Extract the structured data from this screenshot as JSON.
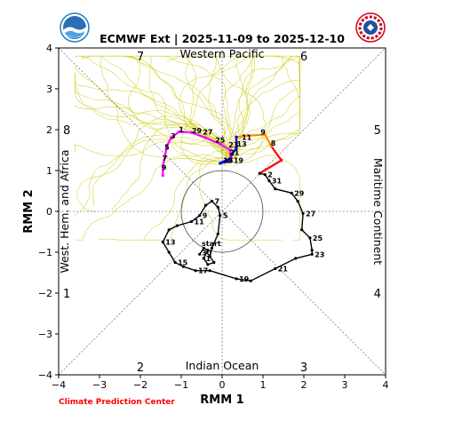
{
  "chart_data": {
    "type": "line",
    "title": "ECMWF Ext | 2025-11-09 to 2025-12-10",
    "xlabel": "RMM 1",
    "ylabel": "RMM 2",
    "xlim": [
      -4,
      4
    ],
    "ylim": [
      -4,
      4
    ],
    "xticks": [
      -4,
      -3,
      -2,
      -1,
      0,
      1,
      2,
      3,
      4
    ],
    "yticks": [
      -4,
      -3,
      -2,
      -1,
      0,
      1,
      2,
      3,
      4
    ],
    "region_labels": {
      "top": "Western Pacific",
      "bottom": "Indian Ocean",
      "left": "West. Hem. and Africa",
      "right": "Maritime Continent"
    },
    "phase_numbers": [
      "1",
      "2",
      "3",
      "4",
      "5",
      "6",
      "7",
      "8"
    ],
    "unit_circle_radius": 1,
    "credit": "Climate Prediction Center",
    "observed": {
      "color": "#000000",
      "points": [
        {
          "label": "",
          "x": 0.92,
          "y": 0.93
        },
        {
          "label": "2",
          "x": 1.05,
          "y": 0.9
        },
        {
          "label": "31",
          "x": 1.15,
          "y": 0.75
        },
        {
          "label": "",
          "x": 1.3,
          "y": 0.55
        },
        {
          "label": "29",
          "x": 1.7,
          "y": 0.45
        },
        {
          "label": "",
          "x": 1.85,
          "y": 0.25
        },
        {
          "label": "27",
          "x": 1.98,
          "y": -0.05
        },
        {
          "label": "",
          "x": 1.95,
          "y": -0.45
        },
        {
          "label": "25",
          "x": 2.15,
          "y": -0.65
        },
        {
          "label": "",
          "x": 2.2,
          "y": -0.95
        },
        {
          "label": "23",
          "x": 2.2,
          "y": -1.05
        },
        {
          "label": "",
          "x": 1.8,
          "y": -1.15
        },
        {
          "label": "21",
          "x": 1.3,
          "y": -1.4
        },
        {
          "label": "",
          "x": 0.7,
          "y": -1.7
        },
        {
          "label": "19",
          "x": 0.35,
          "y": -1.65
        },
        {
          "label": "",
          "x": -0.3,
          "y": -1.45
        },
        {
          "label": "17",
          "x": -0.65,
          "y": -1.45
        },
        {
          "label": "",
          "x": -0.95,
          "y": -1.35
        },
        {
          "label": "15",
          "x": -1.15,
          "y": -1.25
        },
        {
          "label": "",
          "x": -1.3,
          "y": -1.0
        },
        {
          "label": "13",
          "x": -1.45,
          "y": -0.75
        },
        {
          "label": "",
          "x": -1.3,
          "y": -0.45
        },
        {
          "label": "",
          "x": -1.1,
          "y": -0.35
        },
        {
          "label": "11",
          "x": -0.75,
          "y": -0.25
        },
        {
          "label": "9",
          "x": -0.55,
          "y": -0.1
        },
        {
          "label": "",
          "x": -0.4,
          "y": 0.15
        },
        {
          "label": "7",
          "x": -0.25,
          "y": 0.25
        },
        {
          "label": "",
          "x": -0.1,
          "y": 0.1
        },
        {
          "label": "5",
          "x": -0.05,
          "y": -0.1
        },
        {
          "label": "",
          "x": -0.1,
          "y": -0.55
        },
        {
          "label": "",
          "x": -0.25,
          "y": -0.9
        },
        {
          "label": "",
          "x": -0.3,
          "y": -1.1
        },
        {
          "label": "",
          "x": -0.2,
          "y": -1.25
        },
        {
          "label": "",
          "x": -0.35,
          "y": -1.3
        },
        {
          "label": "",
          "x": -0.45,
          "y": -1.15
        },
        {
          "label": "",
          "x": -0.35,
          "y": -0.95
        },
        {
          "label": "",
          "x": -0.45,
          "y": -0.9
        },
        {
          "label": "",
          "x": -0.55,
          "y": -1.05
        }
      ],
      "point_labels": [
        {
          "text": "start",
          "x": -0.5,
          "y": -0.85
        },
        {
          "text": "30",
          "x": -0.5,
          "y": -1.08
        },
        {
          "text": "1",
          "x": -0.4,
          "y": -1.22
        }
      ]
    },
    "forecast_segments": [
      {
        "color": "#ff0000",
        "points": [
          {
            "x": 0.92,
            "y": 0.93
          },
          {
            "x": 1.45,
            "y": 1.25
          },
          {
            "x": 1.2,
            "y": 1.6
          }
        ]
      },
      {
        "color": "#ff8c00",
        "points": [
          {
            "x": 1.2,
            "y": 1.6
          },
          {
            "x": 1.05,
            "y": 1.88
          },
          {
            "x": 0.6,
            "y": 1.85
          },
          {
            "x": 0.35,
            "y": 1.82
          }
        ]
      },
      {
        "color": "#0000ff",
        "points": [
          {
            "x": 0.35,
            "y": 1.82
          },
          {
            "x": 0.35,
            "y": 1.55
          },
          {
            "x": 0.25,
            "y": 1.4
          },
          {
            "x": 0.15,
            "y": 1.22
          },
          {
            "x": -0.05,
            "y": 1.18
          },
          {
            "x": 0.2,
            "y": 1.3
          }
        ]
      },
      {
        "color": "#ff00ff",
        "points": [
          {
            "x": 0.2,
            "y": 1.3
          },
          {
            "x": 0.2,
            "y": 1.5
          },
          {
            "x": -0.05,
            "y": 1.65
          },
          {
            "x": -0.4,
            "y": 1.8
          },
          {
            "x": -0.75,
            "y": 1.93
          },
          {
            "x": -1.05,
            "y": 1.95
          },
          {
            "x": -1.25,
            "y": 1.8
          },
          {
            "x": -1.35,
            "y": 1.6
          },
          {
            "x": -1.4,
            "y": 1.35
          },
          {
            "x": -1.45,
            "y": 1.1
          },
          {
            "x": -1.45,
            "y": 0.88
          }
        ]
      }
    ],
    "forecast_labels": [
      {
        "text": "8",
        "x": 1.25,
        "y": 1.67
      },
      {
        "text": "9",
        "x": 1.0,
        "y": 1.95
      },
      {
        "text": "11",
        "x": 0.6,
        "y": 1.82
      },
      {
        "text": "13",
        "x": 0.48,
        "y": 1.65
      },
      {
        "text": "23",
        "x": 0.28,
        "y": 1.63
      },
      {
        "text": "25",
        "x": -0.05,
        "y": 1.75
      },
      {
        "text": "27",
        "x": -0.35,
        "y": 1.95
      },
      {
        "text": "29",
        "x": -0.62,
        "y": 1.98
      },
      {
        "text": "1",
        "x": -1.0,
        "y": 2.0
      },
      {
        "text": "3",
        "x": -1.2,
        "y": 1.85
      },
      {
        "text": "5",
        "x": -1.35,
        "y": 1.58
      },
      {
        "text": "7",
        "x": -1.4,
        "y": 1.3
      },
      {
        "text": "9",
        "x": -1.42,
        "y": 1.08
      },
      {
        "text": "21",
        "x": 0.3,
        "y": 1.45
      },
      {
        "text": "15",
        "x": 0.15,
        "y": 1.25
      },
      {
        "text": "17",
        "x": 0.15,
        "y": 1.25
      },
      {
        "text": "19",
        "x": 0.4,
        "y": 1.25
      }
    ],
    "ensemble_color": "#c8c800"
  }
}
